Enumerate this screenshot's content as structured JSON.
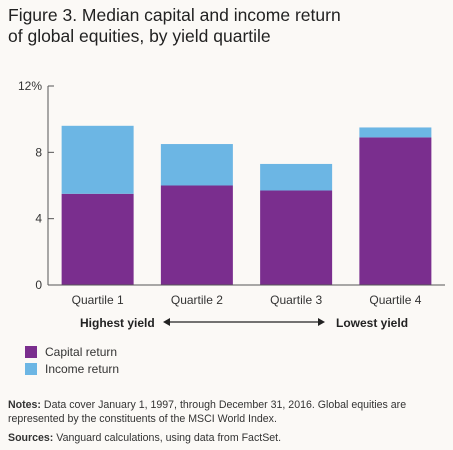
{
  "title_lines": [
    "Figure 3. Median capital and income return",
    "of global equities, by yield quartile"
  ],
  "chart_data": {
    "type": "bar",
    "stacked": true,
    "categories": [
      "Quartile 1",
      "Quartile 2",
      "Quartile 3",
      "Quartile 4"
    ],
    "series": [
      {
        "name": "Capital return",
        "color": "#7a2e8e",
        "values": [
          5.5,
          6.0,
          5.7,
          8.9
        ]
      },
      {
        "name": "Income return",
        "color": "#6cb6e4",
        "values": [
          4.1,
          2.5,
          1.6,
          0.6
        ]
      }
    ],
    "ylim": [
      0,
      12
    ],
    "yticks": [
      0,
      4,
      8,
      12
    ],
    "ytick_labels": [
      "0",
      "4",
      "8",
      "12%"
    ],
    "yield_labels": {
      "left": "Highest yield",
      "right": "Lowest yield"
    },
    "legend_position": "bottom-left"
  },
  "notes": {
    "notes_label": "Notes:",
    "notes_text": " Data cover January 1, 1997, through December 31, 2016. Global equities are represented by the constituents of the MSCI World Index.",
    "sources_label": "Sources:",
    "sources_text": " Vanguard calculations, using data from FactSet."
  }
}
